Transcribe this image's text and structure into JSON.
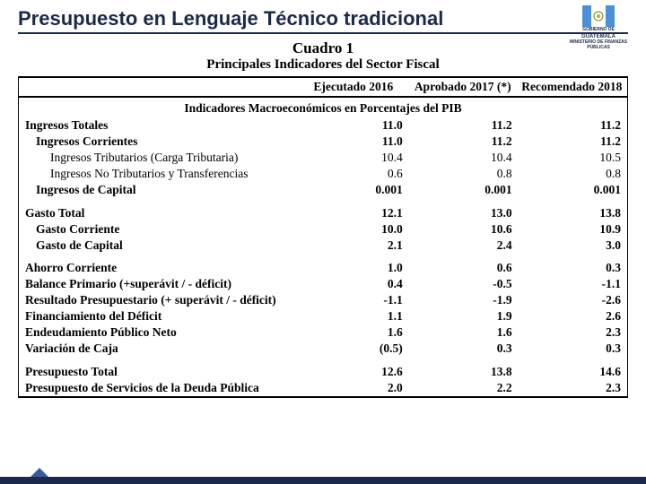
{
  "title": "Presupuesto en Lenguaje Técnico tradicional",
  "logo": {
    "top": "GOBIERNO DE",
    "country": "GUATEMALA",
    "ministry": "MINISTERIO DE FINANZAS PÚBLICAS"
  },
  "cuadro": "Cuadro 1",
  "subtitle": "Principales Indicadores del Sector Fiscal",
  "columns": {
    "c1": "Ejecutado 2016",
    "c2": "Aprobado 2017 (*)",
    "c3": "Recomendado 2018"
  },
  "section_header": "Indicadores Macroeconómicos en Porcentajes del PIB",
  "rows": {
    "g1": [
      {
        "label": "Ingresos Totales",
        "bold": true,
        "indent": 0,
        "v": [
          "11.0",
          "11.2",
          "11.2"
        ]
      },
      {
        "label": "Ingresos Corrientes",
        "bold": true,
        "indent": 1,
        "v": [
          "11.0",
          "11.2",
          "11.2"
        ]
      },
      {
        "label": "Ingresos Tributarios (Carga Tributaria)",
        "bold": false,
        "indent": 2,
        "v": [
          "10.4",
          "10.4",
          "10.5"
        ]
      },
      {
        "label": "Ingresos No Tributarios y Transferencias",
        "bold": false,
        "indent": 2,
        "v": [
          "0.6",
          "0.8",
          "0.8"
        ]
      },
      {
        "label": "Ingresos de Capital",
        "bold": true,
        "indent": 1,
        "v": [
          "0.001",
          "0.001",
          "0.001"
        ]
      }
    ],
    "g2": [
      {
        "label": "Gasto Total",
        "bold": true,
        "indent": 0,
        "v": [
          "12.1",
          "13.0",
          "13.8"
        ]
      },
      {
        "label": "Gasto Corriente",
        "bold": true,
        "indent": 1,
        "v": [
          "10.0",
          "10.6",
          "10.9"
        ]
      },
      {
        "label": "Gasto de Capital",
        "bold": true,
        "indent": 1,
        "v": [
          "2.1",
          "2.4",
          "3.0"
        ]
      }
    ],
    "g3": [
      {
        "label": "Ahorro Corriente",
        "bold": true,
        "indent": 0,
        "v": [
          "1.0",
          "0.6",
          "0.3"
        ]
      },
      {
        "label": "Balance Primario (+superávit / - déficit)",
        "bold": true,
        "indent": 0,
        "v": [
          "0.4",
          "-0.5",
          "-1.1"
        ]
      },
      {
        "label": "Resultado Presupuestario (+ superávit / - déficit)",
        "bold": true,
        "indent": 0,
        "v": [
          "-1.1",
          "-1.9",
          "-2.6"
        ]
      },
      {
        "label": "Financiamiento del Déficit",
        "bold": true,
        "indent": 0,
        "v": [
          "1.1",
          "1.9",
          "2.6"
        ]
      },
      {
        "label": "Endeudamiento Público Neto",
        "bold": true,
        "indent": 0,
        "v": [
          "1.6",
          "1.6",
          "2.3"
        ]
      },
      {
        "label": "Variación de Caja",
        "bold": true,
        "indent": 0,
        "v": [
          "(0.5)",
          "0.3",
          "0.3"
        ]
      }
    ],
    "g4": [
      {
        "label": "Presupuesto Total",
        "bold": true,
        "indent": 0,
        "v": [
          "12.6",
          "13.8",
          "14.6"
        ]
      },
      {
        "label": "Presupuesto de Servicios de la Deuda Pública",
        "bold": true,
        "indent": 0,
        "v": [
          "2.0",
          "2.2",
          "2.3"
        ]
      }
    ]
  }
}
